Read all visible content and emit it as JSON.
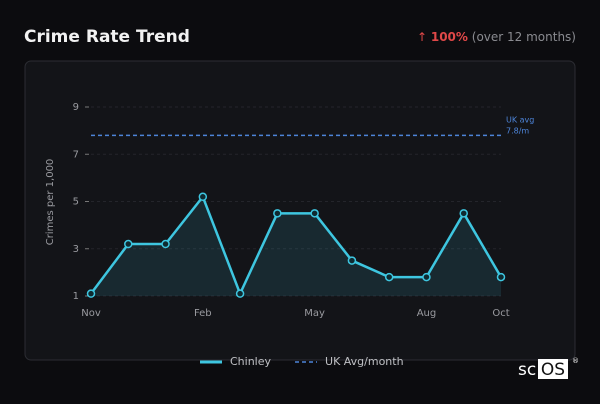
{
  "chart_data": {
    "type": "line",
    "title": "Crime Rate Trend",
    "change": {
      "arrow": "↑",
      "value": "100%",
      "note": "(over 12 months)"
    },
    "y_label": "Crimes per 1,000",
    "categories": [
      "Nov",
      null,
      null,
      "Feb",
      null,
      null,
      "May",
      null,
      null,
      "Aug",
      null,
      "Oct"
    ],
    "series": [
      {
        "name": "Chinley",
        "color": "#3ec6e0",
        "values": [
          1.1,
          3.2,
          3.2,
          5.2,
          1.1,
          4.5,
          4.5,
          2.5,
          1.8,
          1.8,
          4.5,
          1.8
        ]
      }
    ],
    "reference_line": {
      "name": "UK Avg/month",
      "value": 7.8,
      "color": "#4d84d8",
      "label_lines": [
        "UK avg",
        "7.8/m"
      ]
    },
    "ylim": [
      1,
      9
    ],
    "yticks": [
      1,
      3,
      5,
      7,
      9
    ],
    "grid": true,
    "legend": "bottom",
    "logo": {
      "text": "sc",
      "boxed": "OS",
      "mark": "®"
    }
  }
}
